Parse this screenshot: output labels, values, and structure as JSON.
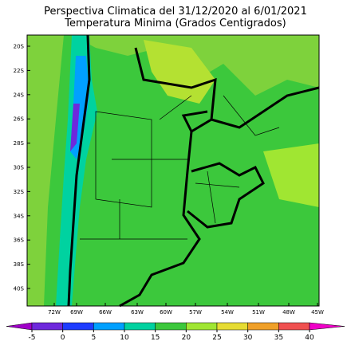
{
  "title": "Perspectiva Climatica del 31/12/2020 al 6/01/2021",
  "subtitle": "Temperatura Minima (Grados Centigrados)",
  "lat_labels": [
    "20S",
    "22S",
    "24S",
    "26S",
    "28S",
    "30S",
    "32S",
    "34S",
    "36S",
    "38S",
    "40S"
  ],
  "lon_labels": [
    "72W",
    "69W",
    "66W",
    "63W",
    "60W",
    "57W",
    "54W",
    "51W",
    "48W",
    "45W"
  ],
  "colorbar": {
    "ticks": [
      -5,
      0,
      5,
      10,
      15,
      20,
      25,
      30,
      35,
      40
    ],
    "colors": [
      "#a000c8",
      "#6e28dc",
      "#1e3cff",
      "#00a0ff",
      "#00d2a0",
      "#3cc83c",
      "#a0e632",
      "#e6dc32",
      "#f0a028",
      "#f05050",
      "#f000c8"
    ]
  }
}
